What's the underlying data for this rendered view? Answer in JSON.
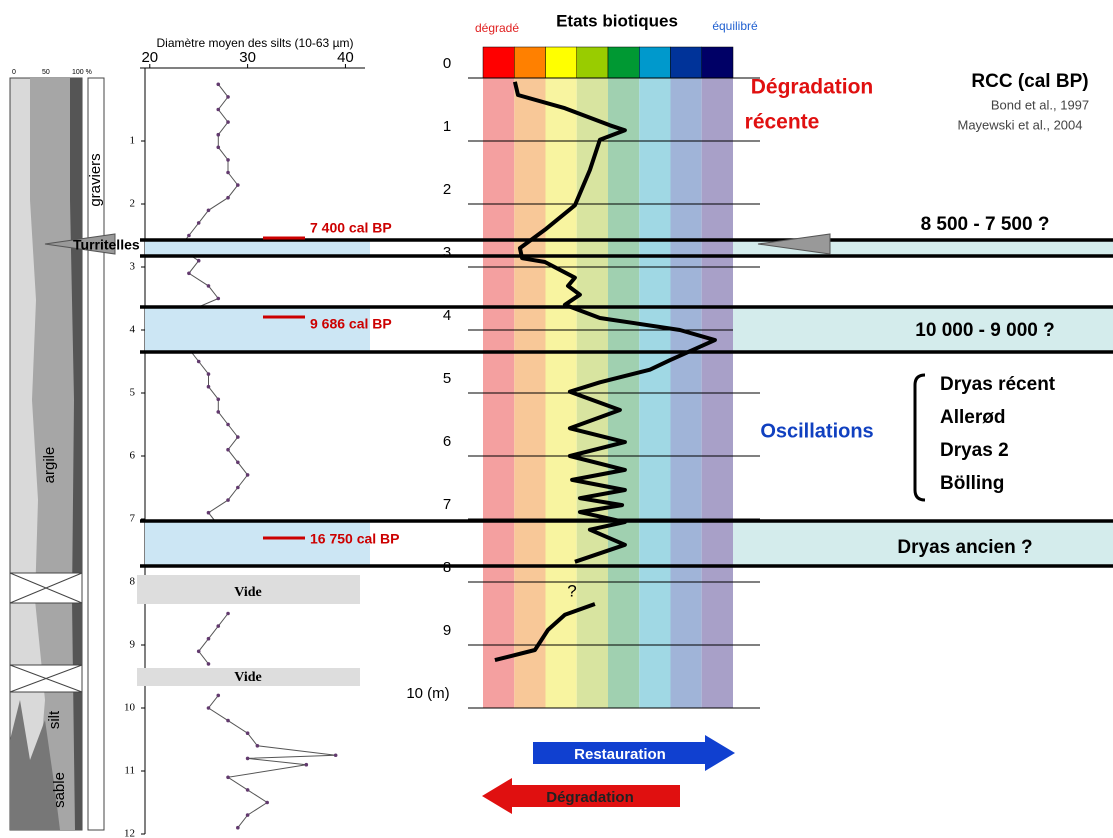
{
  "lithology": {
    "scale": [
      "0",
      "50",
      "100 %"
    ],
    "labels": {
      "clay": "argile",
      "silt": "silt",
      "sand": "sable",
      "gravel": "graviers"
    }
  },
  "silt_chart": {
    "title": "Diamètre moyen des silts (10-63 µm)",
    "xlim": [
      19,
      42
    ],
    "xticks": [
      20,
      30,
      40
    ],
    "ylim": [
      0,
      12
    ],
    "yticks": [
      1,
      2,
      3,
      4,
      5,
      6,
      7,
      8,
      9,
      10,
      11,
      12
    ],
    "gaps": [
      "Vide",
      "Vide"
    ],
    "depth": [
      0.1,
      0.3,
      0.5,
      0.7,
      0.9,
      1.1,
      1.3,
      1.5,
      1.7,
      1.9,
      2.1,
      2.3,
      2.5,
      2.7,
      2.9,
      3.1,
      3.3,
      3.5,
      3.7,
      3.9,
      4.1,
      4.3,
      4.5,
      4.7,
      4.9,
      5.1,
      5.3,
      5.5,
      5.7,
      5.9,
      6.1,
      6.3,
      6.5,
      6.7,
      6.9,
      7.1,
      7.3,
      7.5,
      7.7,
      null,
      8.5,
      8.7,
      8.9,
      9.1,
      9.3,
      null,
      9.8,
      10.0,
      10.2,
      10.4,
      10.6,
      10.75,
      10.8,
      10.9,
      11.1,
      11.3,
      11.5,
      11.7,
      11.9
    ],
    "diameter": [
      27,
      28,
      27,
      28,
      27,
      27,
      28,
      28,
      29,
      28,
      26,
      25,
      24,
      23,
      25,
      24,
      26,
      27,
      24,
      22,
      25,
      24,
      25,
      26,
      26,
      27,
      27,
      28,
      29,
      28,
      29,
      30,
      29,
      28,
      26,
      27,
      23,
      26,
      28,
      null,
      28,
      27,
      26,
      25,
      26,
      null,
      27,
      26,
      28,
      30,
      31,
      39,
      30,
      36,
      28,
      30,
      32,
      30,
      29
    ]
  },
  "biotic_chart": {
    "title": "Etats biotiques",
    "low_label": "dégradé",
    "high_label": "équilibré",
    "colors": [
      "#ff0000",
      "#ff8000",
      "#ffff00",
      "#99cc00",
      "#009933",
      "#0099cc",
      "#003399",
      "#000066"
    ],
    "light_colors": [
      "#f4a0a0",
      "#f8c898",
      "#f8f4a0",
      "#d8e4a0",
      "#a0d0b0",
      "#a0d8e4",
      "#a0b4d8",
      "#a8a0c8"
    ],
    "xlim": [
      0,
      8
    ],
    "ylim": [
      0,
      10
    ],
    "yticks": [
      0,
      1,
      2,
      3,
      4,
      5,
      6,
      7,
      8,
      9,
      {
        "value": 10,
        "label": "10 (m)"
      }
    ],
    "depth": [
      0.06,
      0.27,
      0.48,
      0.75,
      0.83,
      0.98,
      1.46,
      2.02,
      2.41,
      2.7,
      2.86,
      2.92,
      3.17,
      3.3,
      3.44,
      3.6,
      3.81,
      4.0,
      4.16,
      4.48,
      4.63,
      4.83,
      4.98,
      5.27,
      5.56,
      5.78,
      6.0,
      6.22,
      6.38,
      6.54,
      6.67,
      6.78,
      6.89,
      7.05,
      7.17,
      7.41,
      7.68,
      null,
      8.35,
      8.52,
      8.76,
      9.08,
      9.24
    ],
    "state": [
      1.02,
      1.12,
      2.62,
      4.06,
      4.54,
      3.74,
      3.42,
      2.94,
      1.98,
      1.18,
      1.25,
      1.98,
      2.94,
      2.72,
      3.1,
      2.62,
      3.74,
      6.3,
      7.42,
      5.98,
      5.34,
      3.74,
      2.78,
      4.38,
      2.78,
      4.54,
      2.78,
      4.54,
      2.85,
      4.54,
      3.1,
      4.45,
      3.1,
      4.54,
      3.42,
      4.54,
      2.94,
      null,
      3.58,
      2.62,
      2.08,
      1.66,
      0.38
    ],
    "question": "?",
    "arrow_restore": "Restauration",
    "arrow_degrade": "Dégradation"
  },
  "events": [
    "7 400 cal BP",
    "9 686 cal BP",
    "16 750 cal BP"
  ],
  "fossil": "Turritelles",
  "right": {
    "title": "RCC (cal BP)",
    "refs": [
      "Bond et al., 1997",
      "Mayewski et al., 2004"
    ],
    "recent": [
      "Dégradation",
      "récente"
    ],
    "ranges": [
      "8 500 - 7 500 ?",
      "10 000 - 9 000 ?",
      "Dryas ancien ?"
    ],
    "oscillations": "Oscillations",
    "stages": [
      "Dryas récent",
      "Allerød",
      "Dryas 2",
      "Bölling"
    ]
  }
}
